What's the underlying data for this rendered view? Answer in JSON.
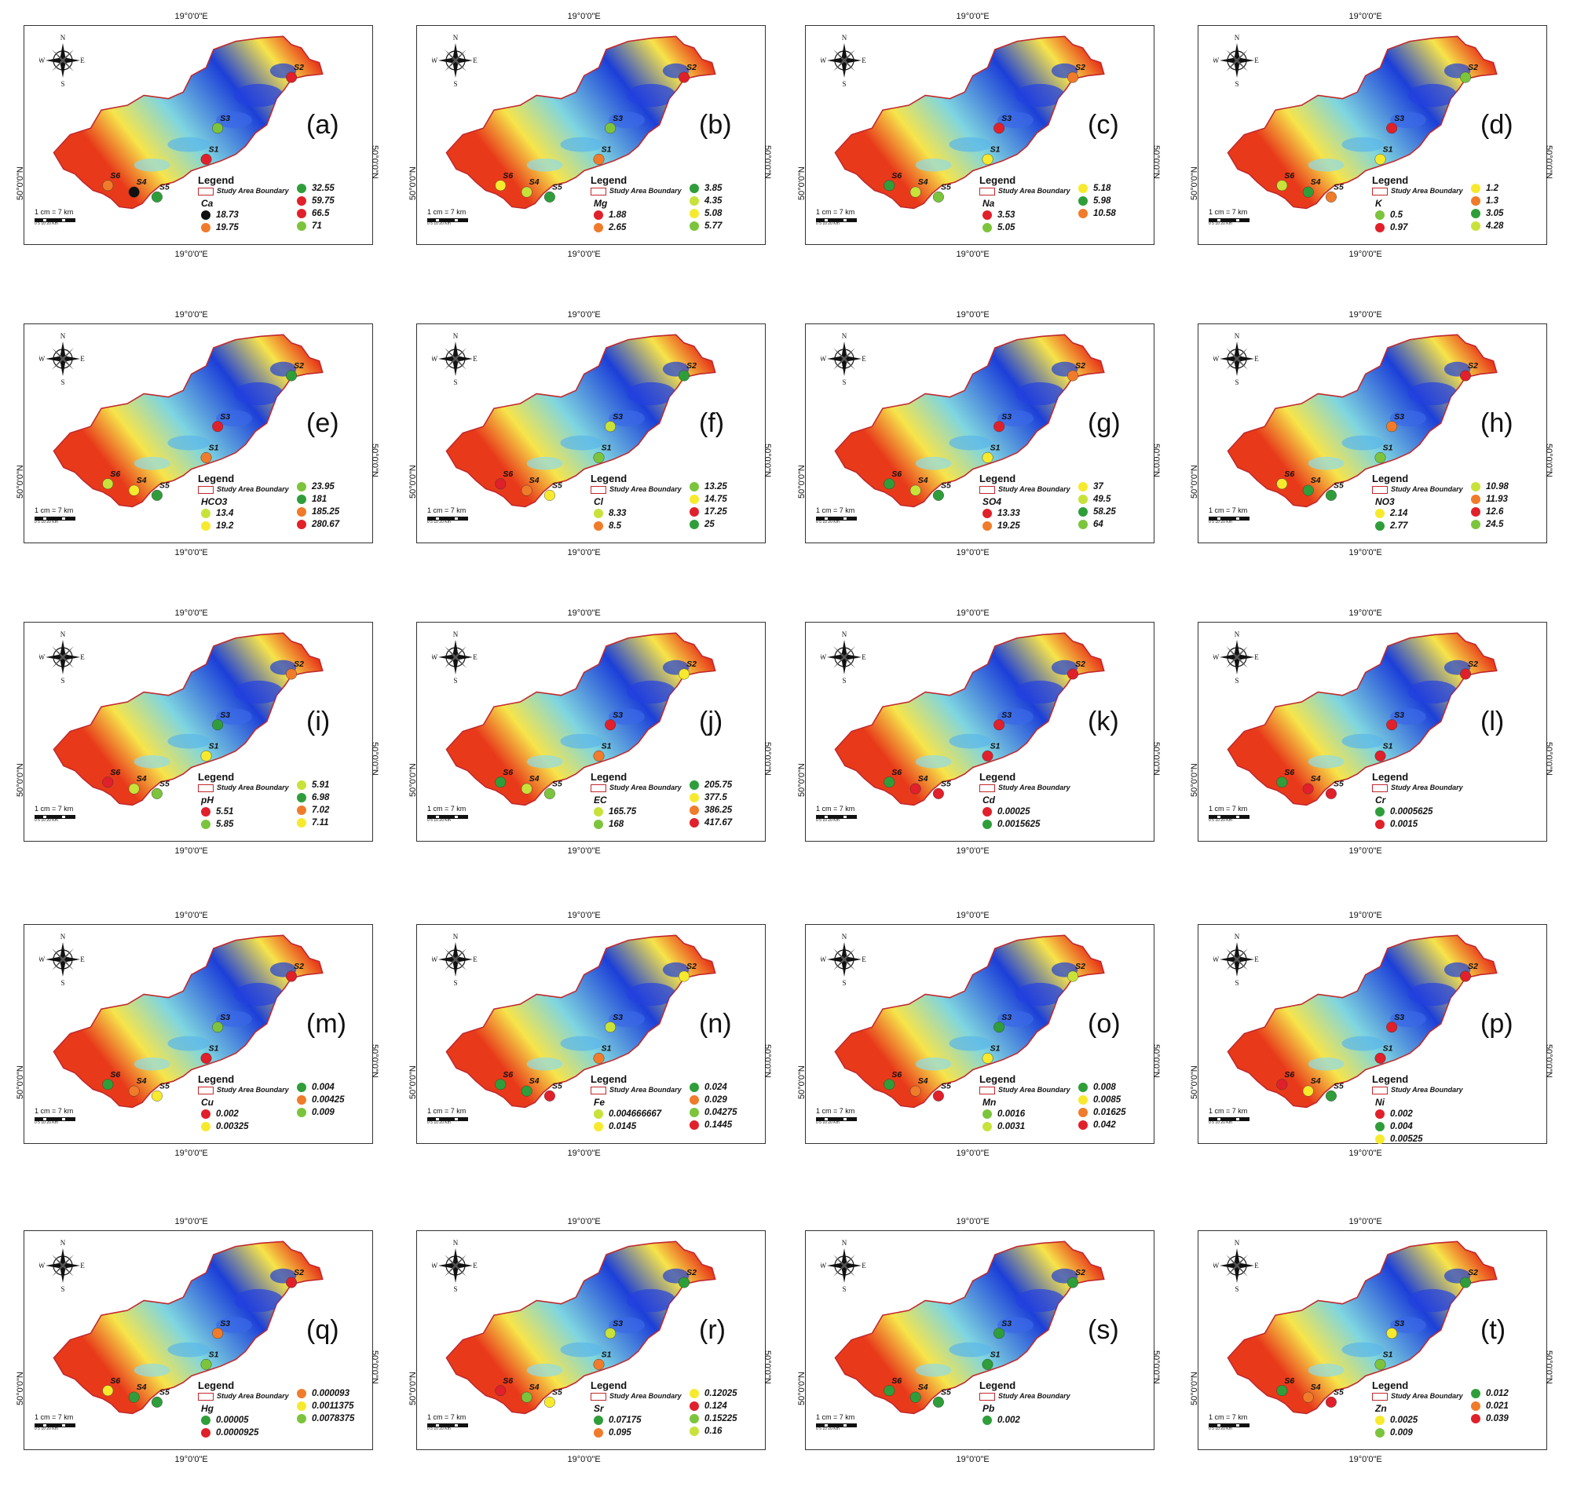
{
  "coord_labels": {
    "longitude": "19°0'0\"E",
    "latitude": "50°0'0\"N"
  },
  "compass": {
    "n": "N",
    "s": "S",
    "e": "E",
    "w": "W"
  },
  "scale_text": "1 cm = 7 km",
  "scale_ticks": "0  5  10   20",
  "scale_unit": "Km",
  "legend_title": "Legend",
  "boundary_label": "Study Area Boundary",
  "site_names": [
    "S1",
    "S2",
    "S3",
    "S4",
    "S5",
    "S6"
  ],
  "colors": {
    "black": "#111111",
    "red": "#e0202a",
    "orange": "#f07b2a",
    "yellow": "#f7ea2e",
    "lime": "#c8e23a",
    "lightgreen": "#7cc43c",
    "green": "#2f9e3a",
    "study_boundary": "#c0282d",
    "elev_high": "#e83a1a",
    "elev_mid": "#f7e44a",
    "elev_low_mid": "#7fd6e0",
    "elev_low": "#1c3fd8"
  },
  "panels": [
    {
      "label": "(a)",
      "param": "Ca",
      "legend_col1": [
        {
          "value": "18.73",
          "color": "black"
        },
        {
          "value": "19.75",
          "color": "orange"
        }
      ],
      "legend_col2": [
        {
          "value": "32.55",
          "color": "green"
        },
        {
          "value": "59.75",
          "color": "red"
        },
        {
          "value": "66.5",
          "color": "red"
        },
        {
          "value": "71",
          "color": "lightgreen"
        }
      ],
      "sites": {
        "S1": "red",
        "S2": "red",
        "S3": "lightgreen",
        "S4": "black",
        "S5": "green",
        "S6": "orange"
      }
    },
    {
      "label": "(b)",
      "param": "Mg",
      "legend_col1": [
        {
          "value": "1.88",
          "color": "red"
        },
        {
          "value": "2.65",
          "color": "orange"
        }
      ],
      "legend_col2": [
        {
          "value": "3.85",
          "color": "green"
        },
        {
          "value": "4.35",
          "color": "lime"
        },
        {
          "value": "5.08",
          "color": "yellow"
        },
        {
          "value": "5.77",
          "color": "lightgreen"
        }
      ],
      "sites": {
        "S1": "orange",
        "S2": "red",
        "S3": "lightgreen",
        "S4": "lime",
        "S5": "green",
        "S6": "yellow"
      }
    },
    {
      "label": "(c)",
      "param": "Na",
      "legend_col1": [
        {
          "value": "3.53",
          "color": "red"
        },
        {
          "value": "5.05",
          "color": "lightgreen"
        }
      ],
      "legend_col2": [
        {
          "value": "5.18",
          "color": "yellow"
        },
        {
          "value": "5.98",
          "color": "green"
        },
        {
          "value": "10.58",
          "color": "orange"
        }
      ],
      "sites": {
        "S1": "yellow",
        "S2": "orange",
        "S3": "red",
        "S4": "lime",
        "S5": "lightgreen",
        "S6": "green"
      }
    },
    {
      "label": "(d)",
      "param": "K",
      "legend_col1": [
        {
          "value": "0.5",
          "color": "lightgreen"
        },
        {
          "value": "0.97",
          "color": "red"
        }
      ],
      "legend_col2": [
        {
          "value": "1.2",
          "color": "yellow"
        },
        {
          "value": "1.3",
          "color": "orange"
        },
        {
          "value": "3.05",
          "color": "green"
        },
        {
          "value": "4.28",
          "color": "lime"
        }
      ],
      "sites": {
        "S1": "yellow",
        "S2": "lightgreen",
        "S3": "red",
        "S4": "green",
        "S5": "orange",
        "S6": "lime"
      }
    },
    {
      "label": "(e)",
      "param": "HCO3",
      "legend_col1": [
        {
          "value": "13.4",
          "color": "lime"
        },
        {
          "value": "19.2",
          "color": "yellow"
        }
      ],
      "legend_col2": [
        {
          "value": "23.95",
          "color": "lightgreen"
        },
        {
          "value": "181",
          "color": "green"
        },
        {
          "value": "185.25",
          "color": "orange"
        },
        {
          "value": "280.67",
          "color": "red"
        }
      ],
      "sites": {
        "S1": "orange",
        "S2": "green",
        "S3": "red",
        "S4": "yellow",
        "S5": "green",
        "S6": "lime"
      }
    },
    {
      "label": "(f)",
      "param": "Cl",
      "legend_col1": [
        {
          "value": "8.33",
          "color": "lime"
        },
        {
          "value": "8.5",
          "color": "orange"
        }
      ],
      "legend_col2": [
        {
          "value": "13.25",
          "color": "lightgreen"
        },
        {
          "value": "14.75",
          "color": "yellow"
        },
        {
          "value": "17.25",
          "color": "red"
        },
        {
          "value": "25",
          "color": "green"
        }
      ],
      "sites": {
        "S1": "lightgreen",
        "S2": "green",
        "S3": "lime",
        "S4": "orange",
        "S5": "yellow",
        "S6": "red"
      }
    },
    {
      "label": "(g)",
      "param": "SO4",
      "legend_col1": [
        {
          "value": "13.33",
          "color": "red"
        },
        {
          "value": "19.25",
          "color": "orange"
        }
      ],
      "legend_col2": [
        {
          "value": "37",
          "color": "yellow"
        },
        {
          "value": "49.5",
          "color": "lime"
        },
        {
          "value": "58.25",
          "color": "green"
        },
        {
          "value": "64",
          "color": "lightgreen"
        }
      ],
      "sites": {
        "S1": "yellow",
        "S2": "orange",
        "S3": "red",
        "S4": "lime",
        "S5": "green",
        "S6": "green"
      }
    },
    {
      "label": "(h)",
      "param": "NO3",
      "legend_col1": [
        {
          "value": "2.14",
          "color": "yellow"
        },
        {
          "value": "2.77",
          "color": "green"
        }
      ],
      "legend_col2": [
        {
          "value": "10.98",
          "color": "lime"
        },
        {
          "value": "11.93",
          "color": "orange"
        },
        {
          "value": "12.6",
          "color": "red"
        },
        {
          "value": "24.5",
          "color": "lightgreen"
        }
      ],
      "sites": {
        "S1": "lightgreen",
        "S2": "red",
        "S3": "orange",
        "S4": "green",
        "S5": "green",
        "S6": "yellow"
      }
    },
    {
      "label": "(i)",
      "param": "pH",
      "legend_col1": [
        {
          "value": "5.51",
          "color": "red"
        },
        {
          "value": "5.85",
          "color": "lightgreen"
        }
      ],
      "legend_col2": [
        {
          "value": "5.91",
          "color": "lime"
        },
        {
          "value": "6.98",
          "color": "green"
        },
        {
          "value": "7.02",
          "color": "orange"
        },
        {
          "value": "7.11",
          "color": "yellow"
        }
      ],
      "sites": {
        "S1": "yellow",
        "S2": "orange",
        "S3": "green",
        "S4": "lime",
        "S5": "lightgreen",
        "S6": "red"
      }
    },
    {
      "label": "(j)",
      "param": "EC",
      "legend_col1": [
        {
          "value": "165.75",
          "color": "lime"
        },
        {
          "value": "168",
          "color": "lightgreen"
        }
      ],
      "legend_col2": [
        {
          "value": "205.75",
          "color": "green"
        },
        {
          "value": "377.5",
          "color": "yellow"
        },
        {
          "value": "386.25",
          "color": "orange"
        },
        {
          "value": "417.67",
          "color": "red"
        }
      ],
      "sites": {
        "S1": "orange",
        "S2": "yellow",
        "S3": "red",
        "S4": "lime",
        "S5": "lightgreen",
        "S6": "green"
      }
    },
    {
      "label": "(k)",
      "param": "Cd",
      "legend_col1": [
        {
          "value": "0.00025",
          "color": "red"
        },
        {
          "value": "0.0015625",
          "color": "green"
        }
      ],
      "legend_col2": [],
      "sites": {
        "S1": "red",
        "S2": "red",
        "S3": "red",
        "S4": "red",
        "S5": "red",
        "S6": "green"
      }
    },
    {
      "label": "(l)",
      "param": "Cr",
      "legend_col1": [
        {
          "value": "0.0005625",
          "color": "green"
        },
        {
          "value": "0.0015",
          "color": "red"
        }
      ],
      "legend_col2": [],
      "sites": {
        "S1": "red",
        "S2": "red",
        "S3": "red",
        "S4": "red",
        "S5": "red",
        "S6": "green"
      }
    },
    {
      "label": "(m)",
      "param": "Cu",
      "legend_col1": [
        {
          "value": "0.002",
          "color": "red"
        },
        {
          "value": "0.00325",
          "color": "yellow"
        }
      ],
      "legend_col2": [
        {
          "value": "0.004",
          "color": "green"
        },
        {
          "value": "0.00425",
          "color": "orange"
        },
        {
          "value": "0.009",
          "color": "lightgreen"
        }
      ],
      "sites": {
        "S1": "red",
        "S2": "red",
        "S3": "lightgreen",
        "S4": "orange",
        "S5": "yellow",
        "S6": "green"
      }
    },
    {
      "label": "(n)",
      "param": "Fe",
      "legend_col1": [
        {
          "value": "0.004666667",
          "color": "lime"
        },
        {
          "value": "0.0145",
          "color": "yellow"
        }
      ],
      "legend_col2": [
        {
          "value": "0.024",
          "color": "green"
        },
        {
          "value": "0.029",
          "color": "orange"
        },
        {
          "value": "0.04275",
          "color": "lightgreen"
        },
        {
          "value": "0.1445",
          "color": "red"
        }
      ],
      "sites": {
        "S1": "orange",
        "S2": "yellow",
        "S3": "lime",
        "S4": "green",
        "S5": "red",
        "S6": "green"
      }
    },
    {
      "label": "(o)",
      "param": "Mn",
      "legend_col1": [
        {
          "value": "0.0016",
          "color": "lightgreen"
        },
        {
          "value": "0.0031",
          "color": "lime"
        }
      ],
      "legend_col2": [
        {
          "value": "0.008",
          "color": "green"
        },
        {
          "value": "0.0085",
          "color": "yellow"
        },
        {
          "value": "0.01625",
          "color": "orange"
        },
        {
          "value": "0.042",
          "color": "red"
        }
      ],
      "sites": {
        "S1": "yellow",
        "S2": "lime",
        "S3": "green",
        "S4": "orange",
        "S5": "red",
        "S6": "green"
      }
    },
    {
      "label": "(p)",
      "param": "Ni",
      "legend_col1": [
        {
          "value": "0.002",
          "color": "red"
        },
        {
          "value": "0.004",
          "color": "green"
        },
        {
          "value": "0.00525",
          "color": "yellow"
        }
      ],
      "legend_col2": [],
      "sites": {
        "S1": "red",
        "S2": "red",
        "S3": "red",
        "S4": "yellow",
        "S5": "green",
        "S6": "red"
      }
    },
    {
      "label": "(q)",
      "param": "Hg",
      "legend_col1": [
        {
          "value": "0.00005",
          "color": "green"
        },
        {
          "value": "0.0000925",
          "color": "red"
        }
      ],
      "legend_col2": [
        {
          "value": "0.000093",
          "color": "orange"
        },
        {
          "value": "0.0011375",
          "color": "yellow"
        },
        {
          "value": "0.0078375",
          "color": "lightgreen"
        }
      ],
      "sites": {
        "S1": "lightgreen",
        "S2": "red",
        "S3": "orange",
        "S4": "green",
        "S5": "green",
        "S6": "yellow"
      }
    },
    {
      "label": "(r)",
      "param": "Sr",
      "legend_col1": [
        {
          "value": "0.07175",
          "color": "green"
        },
        {
          "value": "0.095",
          "color": "orange"
        }
      ],
      "legend_col2": [
        {
          "value": "0.12025",
          "color": "yellow"
        },
        {
          "value": "0.124",
          "color": "red"
        },
        {
          "value": "0.15225",
          "color": "lightgreen"
        },
        {
          "value": "0.16",
          "color": "lime"
        }
      ],
      "sites": {
        "S1": "orange",
        "S2": "green",
        "S3": "lime",
        "S4": "lightgreen",
        "S5": "yellow",
        "S6": "red"
      }
    },
    {
      "label": "(s)",
      "param": "Pb",
      "legend_col1": [
        {
          "value": "0.002",
          "color": "green"
        }
      ],
      "legend_col2": [],
      "sites": {
        "S1": "green",
        "S2": "green",
        "S3": "green",
        "S4": "green",
        "S5": "green",
        "S6": "green"
      }
    },
    {
      "label": "(t)",
      "param": "Zn",
      "legend_col1": [
        {
          "value": "0.0025",
          "color": "yellow"
        },
        {
          "value": "0.009",
          "color": "lightgreen"
        }
      ],
      "legend_col2": [
        {
          "value": "0.012",
          "color": "green"
        },
        {
          "value": "0.021",
          "color": "orange"
        },
        {
          "value": "0.039",
          "color": "red"
        }
      ],
      "sites": {
        "S1": "lightgreen",
        "S2": "green",
        "S3": "yellow",
        "S4": "orange",
        "S5": "red",
        "S6": "green"
      }
    }
  ]
}
